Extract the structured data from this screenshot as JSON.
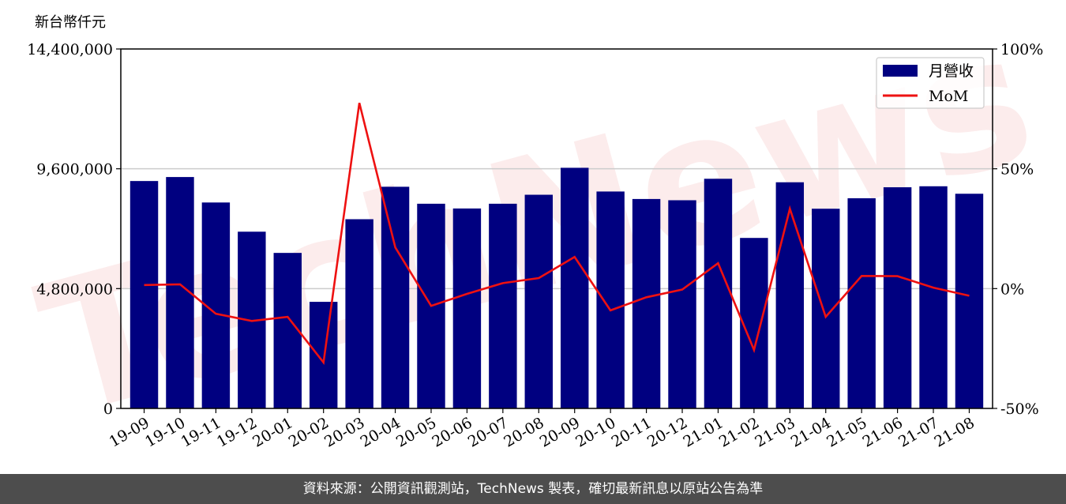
{
  "chart_data": {
    "type": "bar",
    "unit_label": "新台幣仟元",
    "categories": [
      "19-09",
      "19-10",
      "19-11",
      "19-12",
      "20-01",
      "20-02",
      "20-03",
      "20-04",
      "20-05",
      "20-06",
      "20-07",
      "20-08",
      "20-09",
      "20-10",
      "20-11",
      "20-12",
      "21-01",
      "21-02",
      "21-03",
      "21-04",
      "21-05",
      "21-06",
      "21-07",
      "21-08"
    ],
    "series": [
      {
        "name": "月營收",
        "type": "bar",
        "axis": "left",
        "color": "#000080",
        "values": [
          9110000,
          9270000,
          8250000,
          7080000,
          6230000,
          4270000,
          7580000,
          8880000,
          8200000,
          8010000,
          8200000,
          8560000,
          9640000,
          8690000,
          8390000,
          8340000,
          9200000,
          6830000,
          9060000,
          8000000,
          8420000,
          8860000,
          8900000,
          8600000
        ]
      },
      {
        "name": "MoM",
        "type": "line",
        "axis": "right",
        "color": "#ee1111",
        "values": [
          1.5,
          1.8,
          -10.5,
          -13.5,
          -11.8,
          -30.8,
          77.5,
          17.2,
          -7.2,
          -2.2,
          2.3,
          4.4,
          13.2,
          -9.1,
          -3.6,
          -0.4,
          10.6,
          -25.6,
          33.3,
          -11.8,
          5.3,
          5.2,
          0.4,
          -3.0
        ]
      }
    ],
    "y_left": {
      "range": [
        0,
        14400000
      ],
      "ticks": [
        0,
        4800000,
        9600000,
        14400000
      ],
      "tick_labels": [
        "0",
        "4,800,000",
        "9,600,000",
        "14,400,000"
      ]
    },
    "y_right": {
      "range": [
        -50,
        100
      ],
      "ticks": [
        -50,
        0,
        50,
        100
      ],
      "tick_labels": [
        "-50%",
        "0%",
        "50%",
        "100%"
      ]
    },
    "grid": "horizontal",
    "legend_position": "top-right",
    "colors": {
      "axis": "#000000",
      "grid": "#cccccc"
    }
  },
  "watermark_text": "TechNews",
  "footer": {
    "source_text": "資料來源：公開資訊觀測站，TechNews 製表，確切最新訊息以原站公告為準"
  }
}
